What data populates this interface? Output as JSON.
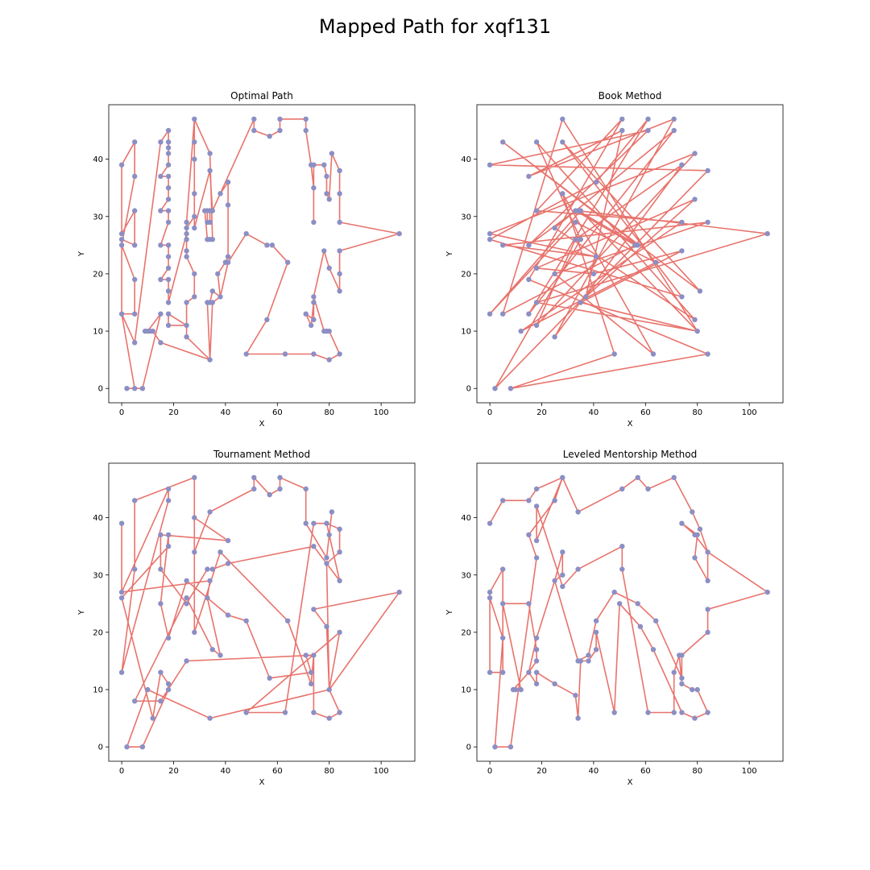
{
  "figure": {
    "suptitle": "Mapped Path for xqf131"
  },
  "style": {
    "path_color": "#e8736c",
    "point_color": "#8c8fc4",
    "axis_color": "#000000"
  },
  "chart_data": [
    {
      "type": "line",
      "title": "Optimal Path",
      "xlabel": "X",
      "ylabel": "Y",
      "xlim": [
        -5,
        113
      ],
      "ylim": [
        -2.5,
        49.5
      ],
      "xticks": [
        0,
        20,
        40,
        60,
        80,
        100
      ],
      "yticks": [
        0,
        10,
        20,
        30,
        40
      ],
      "grid": false,
      "x": [
        0,
        5,
        5,
        0,
        0,
        5,
        5,
        0,
        0,
        5,
        5,
        0,
        0,
        5,
        15,
        18,
        18,
        18,
        18,
        18,
        15,
        18,
        18,
        18,
        15,
        18,
        18,
        15,
        18,
        18,
        18,
        15,
        18,
        18,
        18,
        18,
        25,
        25,
        28,
        28,
        28,
        28,
        28,
        28,
        25,
        25,
        25,
        25,
        25,
        28,
        28,
        25,
        25,
        18,
        18,
        25,
        25,
        34,
        33,
        34,
        35,
        38,
        37,
        40,
        41,
        41,
        41,
        38,
        35,
        34,
        34,
        33,
        33,
        32,
        33,
        34,
        35,
        34,
        28,
        28,
        28,
        34,
        35,
        35,
        51,
        51,
        57,
        61,
        61,
        71,
        71,
        73,
        74,
        74,
        74,
        78,
        79,
        79,
        80,
        81,
        84,
        84,
        84,
        107,
        84,
        84,
        84,
        80,
        78,
        74,
        74,
        71,
        73,
        74,
        74,
        78,
        79,
        80,
        84,
        80,
        74,
        63,
        48,
        56,
        64,
        58,
        56,
        48,
        41,
        38,
        35,
        34,
        15,
        12,
        11,
        9,
        10,
        15,
        8,
        2,
        5,
        0
      ],
      "y": [
        13,
        13,
        19,
        25,
        26,
        25,
        31,
        27,
        39,
        43,
        37,
        25,
        13,
        8,
        43,
        45,
        43,
        42,
        41,
        39,
        37,
        37,
        35,
        33,
        31,
        31,
        29,
        25,
        25,
        23,
        21,
        19,
        19,
        17,
        15,
        15,
        27,
        28,
        30,
        28,
        34,
        40,
        43,
        47,
        29,
        28,
        26,
        24,
        23,
        20,
        16,
        15,
        11,
        11,
        13,
        11,
        9,
        5,
        15,
        15,
        17,
        16,
        20,
        22,
        23,
        32,
        36,
        34,
        31,
        31,
        29,
        29,
        31,
        31,
        26,
        26,
        26,
        41,
        47,
        34,
        28,
        38,
        31,
        31,
        47,
        45,
        44,
        45,
        47,
        47,
        45,
        39,
        35,
        29,
        39,
        39,
        37,
        34,
        33,
        41,
        38,
        34,
        29,
        27,
        24,
        20,
        17,
        21,
        24,
        16,
        12,
        13,
        11,
        15,
        16,
        10,
        10,
        10,
        6,
        5,
        6,
        6,
        6,
        12,
        22,
        25,
        25,
        27,
        22,
        16,
        15,
        5,
        8,
        10,
        10,
        10,
        10,
        13,
        0,
        0,
        0,
        13
      ]
    },
    {
      "type": "line",
      "title": "Book Method",
      "xlabel": "X",
      "ylabel": "Y",
      "xlim": [
        -5,
        113
      ],
      "ylim": [
        -2.5,
        49.5
      ],
      "xticks": [
        0,
        20,
        40,
        60,
        80,
        100
      ],
      "yticks": [
        0,
        10,
        20,
        30,
        40
      ],
      "grid": false,
      "x": [
        0,
        84,
        2,
        35,
        18,
        79,
        25,
        71,
        15,
        61,
        41,
        0,
        74,
        28,
        81,
        5,
        57,
        34,
        107,
        18,
        80,
        35,
        0,
        33,
        64,
        12,
        74,
        18,
        51,
        15,
        84,
        8,
        48,
        28,
        63,
        25,
        84,
        5,
        41,
        0,
        79,
        18,
        33,
        74,
        25,
        71,
        15,
        51,
        37,
        79,
        18,
        40,
        74,
        35,
        80,
        28,
        5,
        56,
        33,
        15,
        61,
        0
      ],
      "y": [
        39,
        38,
        0,
        26,
        43,
        12,
        28,
        45,
        13,
        47,
        36,
        26,
        16,
        43,
        17,
        43,
        25,
        31,
        27,
        15,
        10,
        31,
        13,
        29,
        22,
        10,
        29,
        31,
        47,
        19,
        6,
        0,
        6,
        34,
        6,
        20,
        29,
        25,
        23,
        27,
        41,
        11,
        26,
        39,
        9,
        47,
        37,
        45,
        16,
        33,
        21,
        20,
        24,
        15,
        10,
        47,
        13,
        25,
        31,
        25,
        45,
        39
      ]
    },
    {
      "type": "line",
      "title": "Tournament Method",
      "xlabel": "X",
      "ylabel": "Y",
      "xlim": [
        -5,
        113
      ],
      "ylim": [
        -2.5,
        49.5
      ],
      "xticks": [
        0,
        20,
        40,
        60,
        80,
        100
      ],
      "yticks": [
        0,
        10,
        20,
        30,
        40
      ],
      "grid": false,
      "x": [
        0,
        0,
        18,
        18,
        0,
        5,
        5,
        28,
        28,
        34,
        51,
        51,
        57,
        61,
        61,
        71,
        71,
        79,
        81,
        80,
        79,
        84,
        84,
        79,
        80,
        107,
        74,
        79,
        80,
        84,
        80,
        74,
        74,
        71,
        73,
        57,
        48,
        41,
        33,
        25,
        18,
        15,
        18,
        18,
        0,
        12,
        15,
        18,
        18,
        8,
        2,
        10,
        34,
        80,
        84,
        48,
        63,
        74,
        79,
        84,
        74,
        41,
        35,
        33,
        25,
        15,
        15,
        41,
        28,
        28,
        38,
        64,
        73,
        74,
        25,
        15,
        5,
        25,
        35,
        38,
        33,
        34,
        0
      ],
      "y": [
        39,
        27,
        45,
        43,
        13,
        31,
        43,
        47,
        34,
        41,
        45,
        47,
        44,
        45,
        47,
        45,
        39,
        33,
        41,
        37,
        39,
        38,
        34,
        32,
        10,
        27,
        24,
        21,
        10,
        6,
        5,
        6,
        16,
        16,
        13,
        12,
        22,
        23,
        26,
        29,
        19,
        25,
        37,
        35,
        26,
        5,
        13,
        11,
        10,
        0,
        0,
        10,
        5,
        10,
        20,
        6,
        6,
        39,
        39,
        29,
        35,
        32,
        31,
        31,
        25,
        31,
        37,
        36,
        40,
        20,
        34,
        22,
        11,
        16,
        15,
        8,
        8,
        26,
        17,
        16,
        26,
        29,
        27
      ]
    },
    {
      "type": "line",
      "title": "Leveled Mentorship Method",
      "xlabel": "X",
      "ylabel": "Y",
      "xlim": [
        -5,
        113
      ],
      "ylim": [
        -2.5,
        49.5
      ],
      "xticks": [
        0,
        20,
        40,
        60,
        80,
        100
      ],
      "yticks": [
        0,
        10,
        20,
        30,
        40
      ],
      "grid": false,
      "x": [
        0,
        5,
        15,
        18,
        28,
        34,
        51,
        57,
        61,
        71,
        78,
        81,
        84,
        84,
        79,
        80,
        74,
        79,
        84,
        107,
        84,
        84,
        74,
        74,
        64,
        57,
        48,
        41,
        38,
        34,
        25,
        28,
        28,
        25,
        18,
        15,
        18,
        18,
        15,
        5,
        5,
        0,
        0,
        5,
        5,
        12,
        10,
        9,
        15,
        18,
        18,
        25,
        33,
        34,
        35,
        38,
        41,
        41,
        48,
        50,
        58,
        63,
        74,
        79,
        84,
        80,
        78,
        74,
        73,
        71,
        71,
        61,
        51,
        51,
        34,
        28,
        18,
        18,
        28,
        25,
        15,
        18,
        8,
        2,
        5,
        0
      ],
      "y": [
        39,
        43,
        43,
        45,
        47,
        41,
        45,
        47,
        45,
        47,
        41,
        38,
        34,
        29,
        33,
        37,
        39,
        37,
        34,
        27,
        24,
        20,
        16,
        12,
        22,
        25,
        27,
        22,
        16,
        15,
        29,
        30,
        34,
        29,
        19,
        13,
        15,
        17,
        25,
        25,
        31,
        27,
        13,
        13,
        25,
        10,
        10,
        10,
        13,
        11,
        13,
        11,
        9,
        5,
        15,
        15,
        17,
        20,
        6,
        25,
        21,
        17,
        6,
        5,
        6,
        10,
        10,
        11,
        16,
        13,
        6,
        6,
        31,
        35,
        31,
        28,
        42,
        36,
        47,
        43,
        37,
        33,
        0,
        0,
        19,
        26
      ]
    }
  ]
}
